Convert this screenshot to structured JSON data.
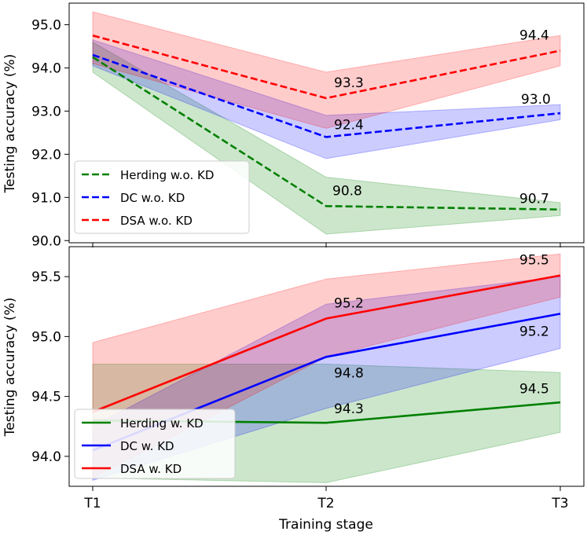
{
  "chart_data": [
    {
      "type": "line",
      "ylabel": "Testing accuracy (%)",
      "xlabel": "",
      "categories": [
        "T1",
        "T2",
        "T3"
      ],
      "ylim": [
        89.95,
        95.5
      ],
      "yticks": [
        90.0,
        91.0,
        92.0,
        93.0,
        94.0,
        95.0
      ],
      "ytick_labels": [
        "90.0",
        "91.0",
        "92.0",
        "93.0",
        "94.0",
        "95.0"
      ],
      "legend_position": "lower-left",
      "series": [
        {
          "name": "Herding w.o. KD",
          "color": "#008000",
          "dash": "dashed",
          "values": [
            94.25,
            90.8,
            90.72
          ],
          "band_low": [
            93.9,
            90.15,
            90.58
          ],
          "band_high": [
            94.6,
            91.47,
            90.88
          ],
          "labels": [
            "",
            "90.8",
            "90.7"
          ]
        },
        {
          "name": "DC w.o. KD",
          "color": "#0000ff",
          "dash": "dashed",
          "values": [
            94.3,
            92.4,
            92.95
          ],
          "band_low": [
            94.05,
            91.9,
            92.8
          ],
          "band_high": [
            94.65,
            92.9,
            93.15
          ],
          "labels": [
            "",
            "92.4",
            "93.0"
          ]
        },
        {
          "name": "DSA w.o. KD",
          "color": "#ff0000",
          "dash": "dashed",
          "values": [
            94.75,
            93.3,
            94.4
          ],
          "band_low": [
            94.1,
            92.6,
            94.05
          ],
          "band_high": [
            95.3,
            93.9,
            94.75
          ],
          "labels": [
            "",
            "93.3",
            "94.4"
          ]
        }
      ]
    },
    {
      "type": "line",
      "ylabel": "Testing accuracy (%)",
      "xlabel": "Training stage",
      "categories": [
        "T1",
        "T2",
        "T3"
      ],
      "ylim": [
        93.75,
        95.75
      ],
      "yticks": [
        94.0,
        94.5,
        95.0,
        95.5
      ],
      "ytick_labels": [
        "94.0",
        "94.5",
        "95.0",
        "95.5"
      ],
      "legend_position": "lower-left",
      "series": [
        {
          "name": "Herding w. KD",
          "color": "#008000",
          "dash": "solid",
          "values": [
            94.3,
            94.28,
            94.45
          ],
          "band_low": [
            93.82,
            93.78,
            94.2
          ],
          "band_high": [
            94.77,
            94.77,
            94.7
          ],
          "labels": [
            "",
            "94.3",
            "94.5"
          ]
        },
        {
          "name": "DC w. KD",
          "color": "#0000ff",
          "dash": "solid",
          "values": [
            94.05,
            94.83,
            95.19
          ],
          "band_low": [
            93.8,
            94.4,
            94.9
          ],
          "band_high": [
            94.25,
            95.27,
            95.5
          ],
          "labels": [
            "",
            "94.8",
            "95.2"
          ]
        },
        {
          "name": "DSA w. KD",
          "color": "#ff0000",
          "dash": "solid",
          "values": [
            94.37,
            95.15,
            95.51
          ],
          "band_low": [
            93.82,
            94.83,
            95.33
          ],
          "band_high": [
            94.95,
            95.48,
            95.69
          ],
          "labels": [
            "",
            "95.2",
            "95.5"
          ]
        }
      ]
    }
  ]
}
